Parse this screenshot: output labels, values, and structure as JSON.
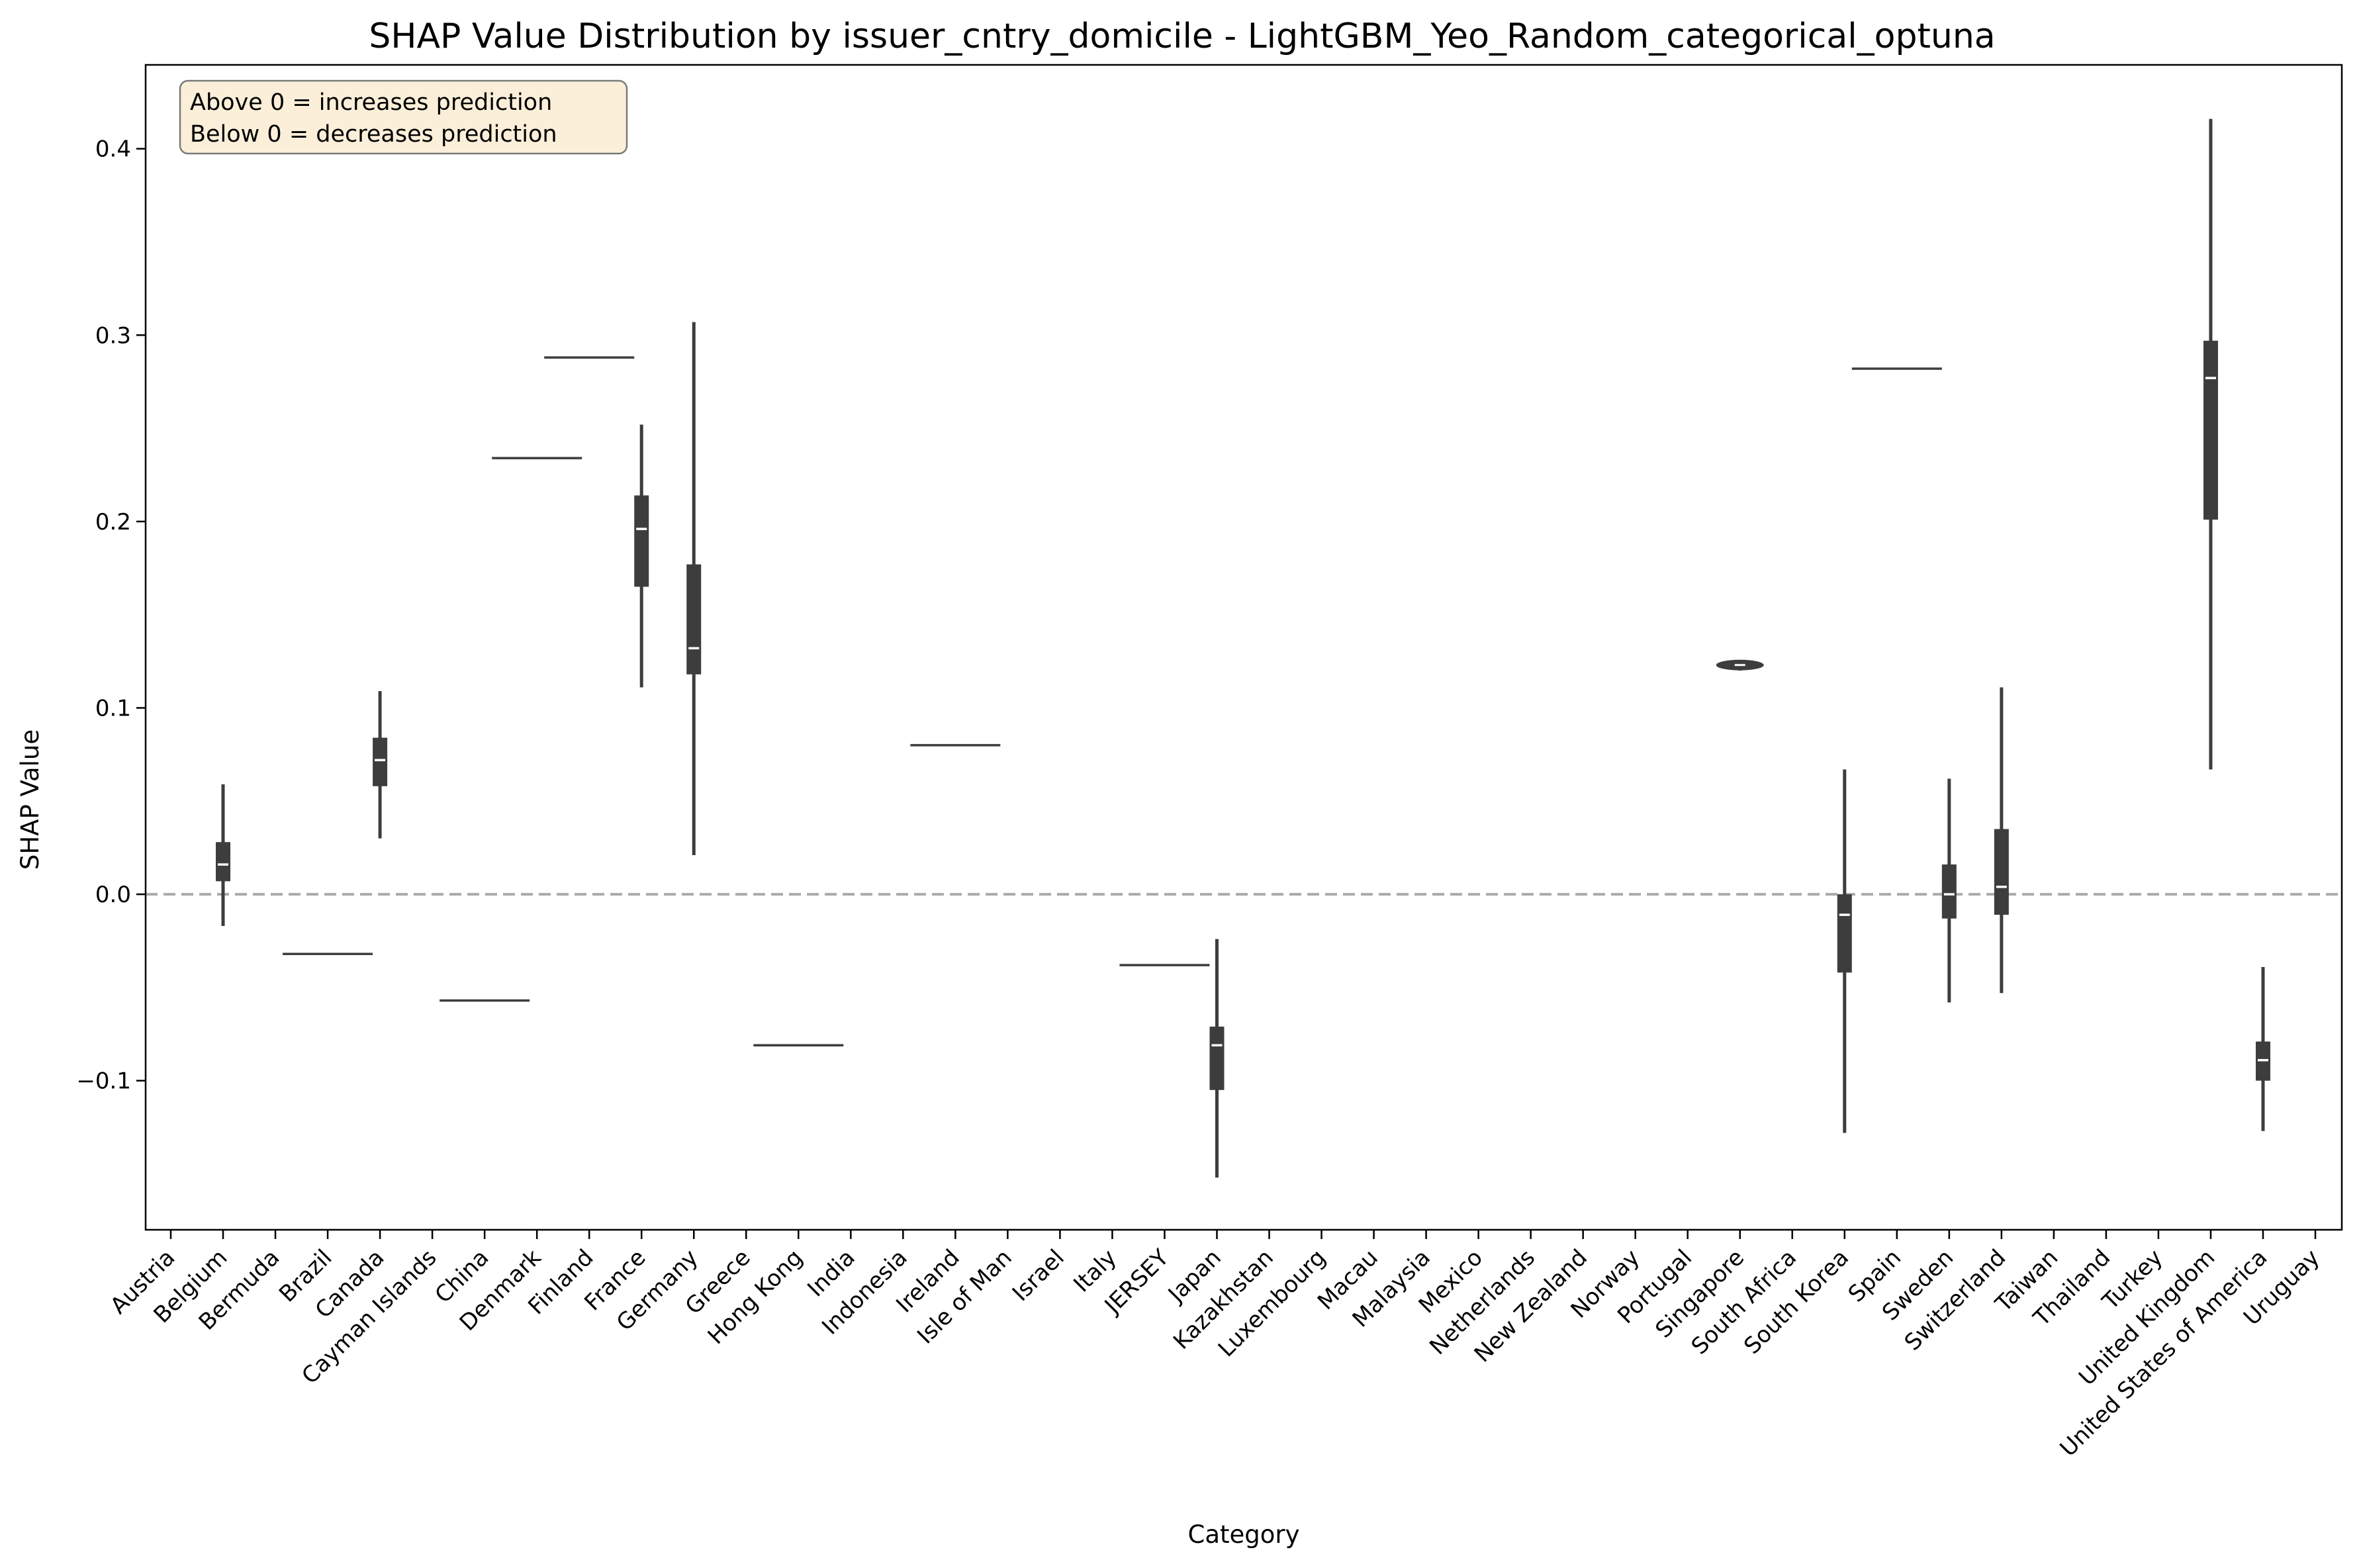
{
  "chart_data": {
    "type": "violin",
    "title": "SHAP Value Distribution by issuer_cntry_domicile - LightGBM_Yeo_Random_categorical_optuna",
    "xlabel": "Category",
    "ylabel": "SHAP Value",
    "ylim": [
      -0.18,
      0.445
    ],
    "yticks": [
      -0.1,
      0.0,
      0.1,
      0.2,
      0.3,
      0.4
    ],
    "ytick_labels": [
      "−0.1",
      "0.0",
      "0.1",
      "0.2",
      "0.3",
      "0.4"
    ],
    "reference_line": {
      "y": 0.0,
      "style": "dashed",
      "color": "#aaaaaa"
    },
    "annotation": [
      "Above 0 = increases prediction",
      "Below 0 = decreases prediction"
    ],
    "annotation_position": "top-left",
    "categories": [
      "Austria",
      "Belgium",
      "Bermuda",
      "Brazil",
      "Canada",
      "Cayman Islands",
      "China",
      "Denmark",
      "Finland",
      "France",
      "Germany",
      "Greece",
      "Hong Kong",
      "India",
      "Indonesia",
      "Ireland",
      "Isle of Man",
      "Israel",
      "Italy",
      "JERSEY",
      "Japan",
      "Kazakhstan",
      "Luxembourg",
      "Macau",
      "Malaysia",
      "Mexico",
      "Netherlands",
      "New Zealand",
      "Norway",
      "Portugal",
      "Singapore",
      "South Africa",
      "South Korea",
      "Spain",
      "Sweden",
      "Switzerland",
      "Taiwan",
      "Thailand",
      "Turkey",
      "United Kingdom",
      "United States of America",
      "Uruguay"
    ],
    "series": [
      {
        "category": "Belgium",
        "min": -0.017,
        "q1": 0.007,
        "median": 0.016,
        "q3": 0.028,
        "max": 0.059
      },
      {
        "category": "Brazil",
        "constant": -0.032
      },
      {
        "category": "Canada",
        "min": 0.03,
        "q1": 0.058,
        "median": 0.072,
        "q3": 0.084,
        "max": 0.109
      },
      {
        "category": "China",
        "constant": -0.057
      },
      {
        "category": "Denmark",
        "constant": 0.234
      },
      {
        "category": "Finland",
        "constant": 0.288
      },
      {
        "category": "France",
        "min": 0.111,
        "q1": 0.165,
        "median": 0.196,
        "q3": 0.214,
        "max": 0.252
      },
      {
        "category": "Germany",
        "min": 0.021,
        "q1": 0.118,
        "median": 0.132,
        "q3": 0.177,
        "max": 0.307
      },
      {
        "category": "Hong Kong",
        "constant": -0.081
      },
      {
        "category": "Ireland",
        "constant": 0.08
      },
      {
        "category": "JERSEY",
        "constant": -0.038
      },
      {
        "category": "Japan",
        "min": -0.152,
        "q1": -0.105,
        "median": -0.081,
        "q3": -0.071,
        "max": -0.024
      },
      {
        "category": "Singapore",
        "min": 0.12,
        "q1": 0.121,
        "median": 0.123,
        "q3": 0.124,
        "max": 0.125
      },
      {
        "category": "South Korea",
        "min": -0.128,
        "q1": -0.042,
        "median": -0.011,
        "q3": 0.0,
        "max": 0.067
      },
      {
        "category": "Spain",
        "constant": 0.282
      },
      {
        "category": "Sweden",
        "min": -0.058,
        "q1": -0.013,
        "median": 0.0,
        "q3": 0.016,
        "max": 0.062
      },
      {
        "category": "Switzerland",
        "min": -0.053,
        "q1": -0.011,
        "median": 0.004,
        "q3": 0.035,
        "max": 0.111
      },
      {
        "category": "United Kingdom",
        "min": 0.067,
        "q1": 0.201,
        "median": 0.277,
        "q3": 0.297,
        "max": 0.416
      },
      {
        "category": "United States of America",
        "min": -0.127,
        "q1": -0.1,
        "median": -0.089,
        "q3": -0.079,
        "max": -0.039
      }
    ],
    "grid": false,
    "legend": "none"
  },
  "colors": {
    "violin": "#3d3d3d",
    "median": "#ffffff",
    "reference": "#aaaaaa",
    "annotation_fill": "#fbefd9",
    "annotation_border": "#7a7a7a"
  }
}
